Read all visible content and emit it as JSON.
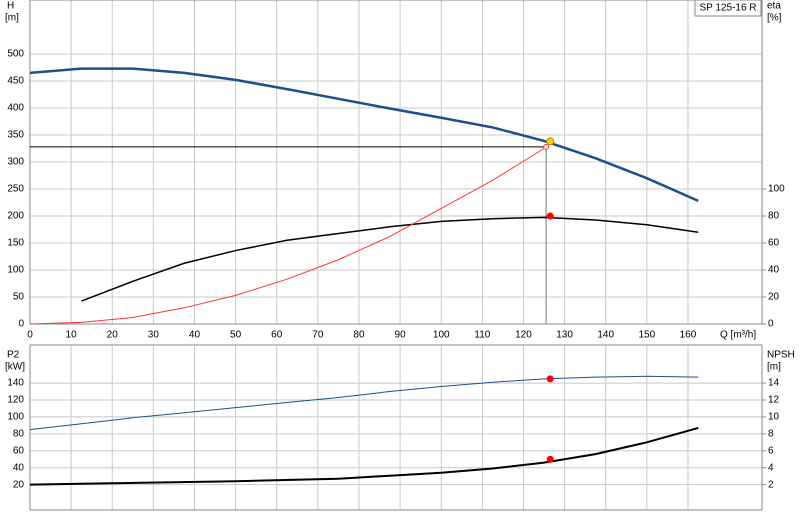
{
  "chart_data": [
    {
      "type": "line",
      "title": "SP 125-16 R",
      "xlabel": "Q [m³/h]",
      "ylabel": "H",
      "yunit": "[m]",
      "y2label": "eta",
      "y2unit": "[%]",
      "xlim": [
        0,
        178
      ],
      "xticks": [
        0,
        10,
        20,
        30,
        40,
        50,
        60,
        70,
        80,
        90,
        100,
        110,
        120,
        130,
        140,
        150,
        160
      ],
      "ylim": [
        0,
        600
      ],
      "yticks": [
        0,
        50,
        100,
        150,
        200,
        250,
        300,
        350,
        400,
        450,
        500
      ],
      "y2lim": [
        0,
        240
      ],
      "y2ticks": [
        0,
        20,
        40,
        60,
        80,
        100
      ],
      "grid": true,
      "series": [
        {
          "color": "#1f4e8c",
          "width": 2.5,
          "x": [
            0,
            12.5,
            25,
            37.5,
            50,
            62.5,
            75,
            87.5,
            100,
            112.5,
            125,
            137.5,
            150,
            162.5
          ],
          "values": [
            465,
            473,
            473,
            465,
            452,
            435,
            417,
            399,
            382,
            364,
            339,
            307,
            270,
            228
          ]
        },
        {
          "color": "#000000",
          "width": 1.5,
          "axis": "y2",
          "x": [
            12.5,
            25,
            37.5,
            50,
            62.5,
            75,
            87.5,
            100,
            112.5,
            125,
            137.5,
            150,
            162.5
          ],
          "values": [
            17,
            31.6,
            45,
            54.4,
            62,
            67,
            72,
            76,
            78,
            79,
            77,
            73.5,
            68
          ]
        },
        {
          "color": "#ff3333",
          "width": 1,
          "x": [
            0,
            12.5,
            25,
            37.5,
            50,
            62.5,
            75,
            87.5,
            100,
            112.5,
            125
          ],
          "values": [
            0,
            3,
            12,
            30,
            53,
            83,
            119,
            162,
            214,
            266,
            325
          ]
        }
      ],
      "duty_lines": {
        "x": 125.5,
        "y": 328
      },
      "markers": [
        {
          "x": 126.5,
          "value": 338,
          "color": "#ffd400"
        },
        {
          "x": 126.5,
          "value": 80,
          "color": "#ff0000",
          "axis": "y2"
        }
      ]
    },
    {
      "type": "line",
      "ylabel": "P2",
      "yunit": "[kW]",
      "y2label": "NPSH",
      "y2unit": "[m]",
      "sharex": true,
      "xlim": [
        0,
        178
      ],
      "ylim": [
        -10,
        185
      ],
      "yticks": [
        20,
        40,
        60,
        80,
        100,
        120,
        140
      ],
      "y2lim": [
        -1,
        18.5
      ],
      "y2ticks": [
        2,
        4,
        6,
        8,
        10,
        12,
        14
      ],
      "grid": true,
      "series": [
        {
          "color": "#1f4e8c",
          "width": 1,
          "x": [
            0,
            12.5,
            25,
            37.5,
            50,
            62.5,
            75,
            87.5,
            100,
            112.5,
            125,
            137.5,
            150,
            162.5
          ],
          "values": [
            85,
            92,
            99,
            105,
            111,
            117,
            123,
            130,
            136,
            141,
            145,
            147,
            148,
            147
          ]
        },
        {
          "color": "#000000",
          "width": 2,
          "axis": "y2",
          "x": [
            0,
            12.5,
            50,
            75,
            100,
            112.5,
            125,
            137.5,
            150,
            162.5
          ],
          "values": [
            2.0,
            2.1,
            2.4,
            2.7,
            3.4,
            3.9,
            4.6,
            5.6,
            7.0,
            8.7
          ]
        }
      ],
      "markers": [
        {
          "x": 126.5,
          "value": 145,
          "color": "#ff0000"
        },
        {
          "x": 126.5,
          "value": 5.0,
          "color": "#ff0000",
          "axis": "y2"
        }
      ]
    }
  ]
}
